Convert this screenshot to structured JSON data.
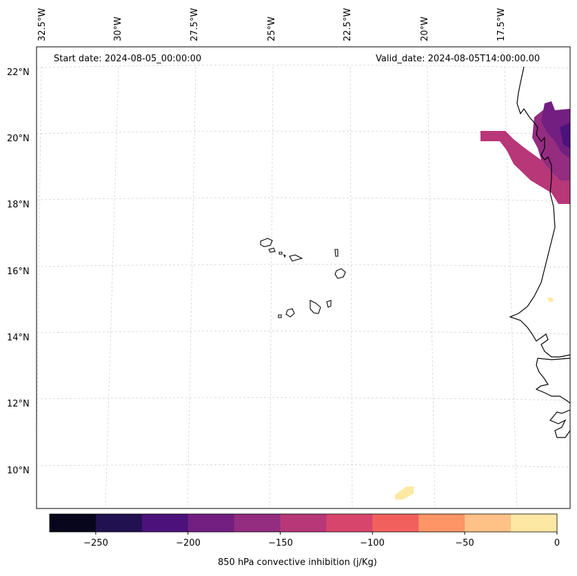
{
  "map": {
    "start_date": "Start date: 2024-08-05_00:00:00",
    "valid_date": "Valid_date: 2024-08-05T14:00:00.00",
    "lon_labels": [
      "32.5°W",
      "30°W",
      "27.5°W",
      "25°W",
      "22.5°W",
      "20°W",
      "17.5°W"
    ],
    "lat_labels": [
      "22°N",
      "20°N",
      "18°N",
      "16°N",
      "14°N",
      "12°N",
      "10°N"
    ]
  },
  "colorbar": {
    "label": "850 hPa convective inhibition (j/Kg)",
    "ticks": [
      "−250",
      "−200",
      "−150",
      "−100",
      "−50",
      "0"
    ],
    "colors": [
      "#07061c",
      "#221150",
      "#4d117b",
      "#721f81",
      "#942c80",
      "#b73779",
      "#d8456c",
      "#f1605d",
      "#fd9567",
      "#fec287",
      "#fde8a3"
    ]
  },
  "colors": {
    "coastline": "#000000",
    "gridline": "#cccccc"
  }
}
